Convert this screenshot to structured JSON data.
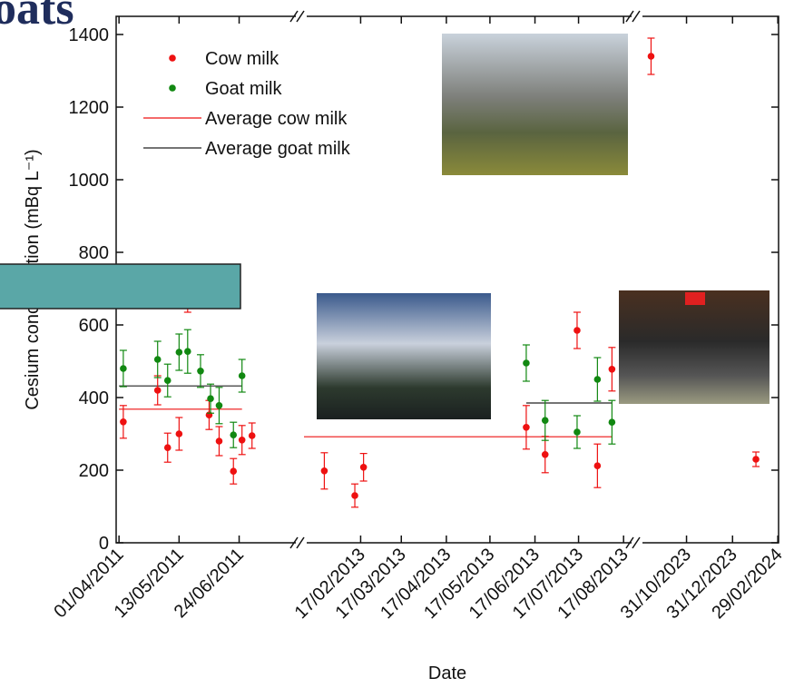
{
  "header": {
    "title": "oats"
  },
  "chart_data": {
    "type": "scatter",
    "xlabel": "Date",
    "ylabel": "Cesium concentration (mBq L⁻¹)",
    "ylim": [
      0,
      1450
    ],
    "yticks": [
      0,
      200,
      400,
      600,
      800,
      1000,
      1200,
      1400
    ],
    "x_segments": [
      {
        "xlim": [
          "2011-03-30",
          "2011-08-02"
        ],
        "xticks": [
          {
            "value": "2011-04-01",
            "label": "01/04/2011"
          },
          {
            "value": "2011-05-13",
            "label": "13/05/2011"
          },
          {
            "value": "2011-06-24",
            "label": "24/06/2011"
          }
        ]
      },
      {
        "xlim": [
          "2013-01-09",
          "2013-08-25"
        ],
        "xticks": [
          {
            "value": "2013-02-17",
            "label": "17/02/2013"
          },
          {
            "value": "2013-03-17",
            "label": "17/03/2013"
          },
          {
            "value": "2013-04-17",
            "label": "17/04/2013"
          },
          {
            "value": "2013-05-17",
            "label": "17/05/2013"
          },
          {
            "value": "2013-06-17",
            "label": "17/06/2013"
          },
          {
            "value": "2013-07-17",
            "label": "17/07/2013"
          },
          {
            "value": "2013-08-17",
            "label": "17/08/2013"
          }
        ]
      },
      {
        "xlim": [
          "2023-08-30",
          "2024-03-01"
        ],
        "xticks": [
          {
            "value": "2023-10-31",
            "label": "31/10/2023"
          },
          {
            "value": "2023-12-31",
            "label": "31/12/2023"
          },
          {
            "value": "2024-02-29",
            "label": "29/02/2024"
          }
        ]
      }
    ],
    "series": [
      {
        "name": "Cow milk",
        "color": "#ee1111",
        "x": [
          "2011-04-04",
          "2011-04-28",
          "2011-05-05",
          "2011-05-13",
          "2011-05-19",
          "2011-06-03",
          "2011-06-10",
          "2011-06-20",
          "2011-06-26",
          "2011-07-03",
          "2013-01-23",
          "2013-02-13",
          "2013-02-19",
          "2013-06-11",
          "2013-06-24",
          "2013-07-16",
          "2013-07-30",
          "2013-08-09",
          "2023-09-14",
          "2024-01-31"
        ],
        "values": [
          333,
          420,
          262,
          300,
          680,
          352,
          280,
          197,
          283,
          295,
          198,
          130,
          208,
          318,
          243,
          585,
          212,
          478,
          1340,
          230
        ],
        "errors": [
          45,
          40,
          40,
          45,
          45,
          40,
          40,
          35,
          40,
          35,
          50,
          32,
          38,
          60,
          50,
          50,
          60,
          60,
          50,
          20
        ]
      },
      {
        "name": "Goat milk",
        "color": "#118811",
        "x": [
          "2011-04-04",
          "2011-04-28",
          "2011-05-05",
          "2011-05-13",
          "2011-05-19",
          "2011-05-28",
          "2011-06-04",
          "2011-06-10",
          "2011-06-20",
          "2011-06-26",
          "2013-06-11",
          "2013-06-24",
          "2013-07-16",
          "2013-07-30",
          "2013-08-09"
        ],
        "values": [
          480,
          505,
          447,
          525,
          527,
          473,
          397,
          378,
          297,
          460,
          495,
          337,
          305,
          450,
          332
        ],
        "errors": [
          50,
          50,
          45,
          50,
          60,
          45,
          40,
          50,
          35,
          45,
          50,
          55,
          45,
          60,
          60
        ]
      }
    ],
    "averages": [
      {
        "name": "Average cow milk",
        "color": "#ee1111",
        "segments": [
          {
            "x": [
              "2011-04-01",
              "2011-06-26"
            ],
            "value": 368
          },
          {
            "x": [
              "2013-01-09",
              "2013-08-09"
            ],
            "value": 292
          }
        ]
      },
      {
        "name": "Average goat milk",
        "color": "#222222",
        "segments": [
          {
            "x": [
              "2011-04-01",
              "2011-06-26"
            ],
            "value": 432
          },
          {
            "x": [
              "2013-06-11",
              "2013-08-09"
            ],
            "value": 385
          }
        ]
      }
    ]
  }
}
